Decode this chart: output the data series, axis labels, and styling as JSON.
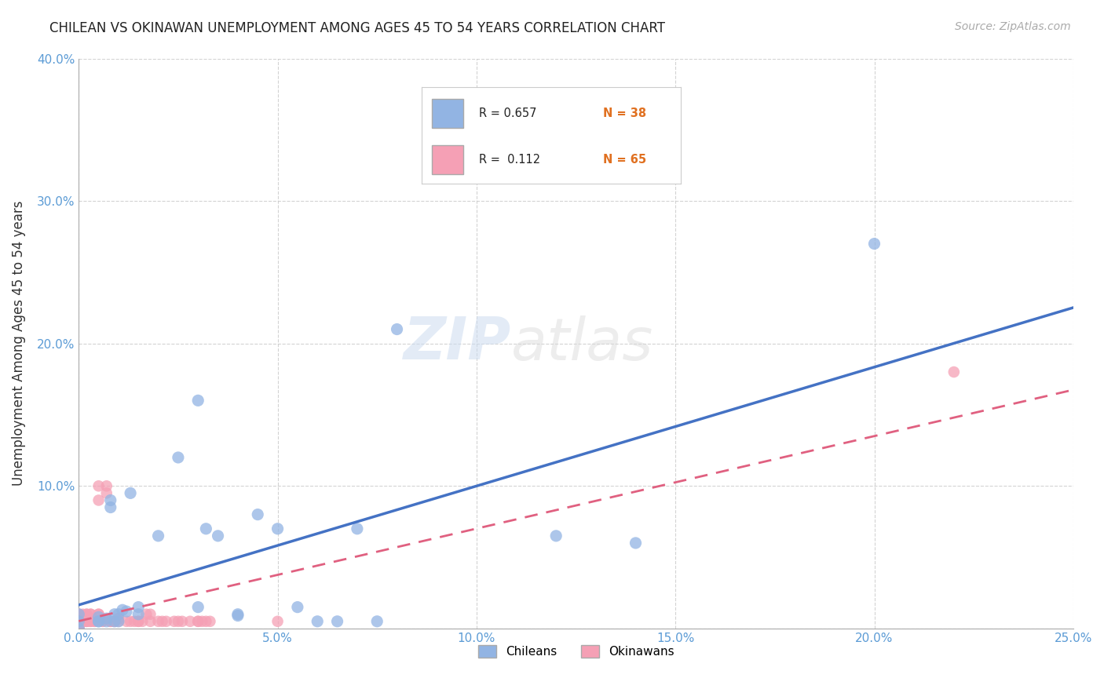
{
  "title": "CHILEAN VS OKINAWAN UNEMPLOYMENT AMONG AGES 45 TO 54 YEARS CORRELATION CHART",
  "source": "Source: ZipAtlas.com",
  "ylabel": "Unemployment Among Ages 45 to 54 years",
  "xlim": [
    0,
    0.25
  ],
  "ylim": [
    0,
    0.4
  ],
  "xticks": [
    0.0,
    0.05,
    0.1,
    0.15,
    0.2,
    0.25
  ],
  "yticks": [
    0.0,
    0.1,
    0.2,
    0.3,
    0.4
  ],
  "xtick_labels": [
    "0.0%",
    "5.0%",
    "10.0%",
    "15.0%",
    "20.0%",
    "25.0%"
  ],
  "ytick_labels": [
    "",
    "10.0%",
    "20.0%",
    "30.0%",
    "40.0%"
  ],
  "chilean_color": "#92b4e3",
  "okinawan_color": "#f5a0b5",
  "trendline_blue": "#4472c4",
  "trendline_pink": "#e06080",
  "chilean_R": 0.657,
  "chilean_N": 38,
  "okinawan_R": 0.112,
  "okinawan_N": 65,
  "watermark": "ZIPatlas",
  "background_color": "#ffffff",
  "chilean_x": [
    0.0,
    0.0,
    0.0,
    0.005,
    0.005,
    0.005,
    0.007,
    0.007,
    0.008,
    0.008,
    0.009,
    0.009,
    0.01,
    0.01,
    0.011,
    0.012,
    0.013,
    0.015,
    0.015,
    0.02,
    0.025,
    0.03,
    0.03,
    0.032,
    0.035,
    0.04,
    0.04,
    0.045,
    0.05,
    0.055,
    0.06,
    0.065,
    0.07,
    0.075,
    0.08,
    0.12,
    0.14,
    0.2
  ],
  "chilean_y": [
    0.0,
    0.01,
    0.005,
    0.005,
    0.005,
    0.008,
    0.005,
    0.007,
    0.085,
    0.09,
    0.005,
    0.01,
    0.005,
    0.01,
    0.013,
    0.012,
    0.095,
    0.01,
    0.015,
    0.065,
    0.12,
    0.015,
    0.16,
    0.07,
    0.065,
    0.009,
    0.01,
    0.08,
    0.07,
    0.015,
    0.005,
    0.005,
    0.07,
    0.005,
    0.21,
    0.065,
    0.06,
    0.27
  ],
  "okinawan_x": [
    0.0,
    0.0,
    0.0,
    0.0,
    0.0,
    0.0,
    0.0,
    0.0,
    0.0,
    0.0,
    0.0,
    0.0,
    0.001,
    0.001,
    0.001,
    0.002,
    0.002,
    0.002,
    0.002,
    0.002,
    0.003,
    0.003,
    0.003,
    0.003,
    0.004,
    0.004,
    0.005,
    0.005,
    0.005,
    0.005,
    0.006,
    0.006,
    0.007,
    0.007,
    0.008,
    0.008,
    0.008,
    0.009,
    0.009,
    0.01,
    0.01,
    0.01,
    0.012,
    0.013,
    0.014,
    0.015,
    0.015,
    0.016,
    0.017,
    0.018,
    0.018,
    0.02,
    0.021,
    0.022,
    0.024,
    0.025,
    0.026,
    0.028,
    0.03,
    0.03,
    0.031,
    0.032,
    0.033,
    0.05,
    0.22
  ],
  "okinawan_y": [
    0.0,
    0.0,
    0.0,
    0.0,
    0.005,
    0.005,
    0.005,
    0.005,
    0.005,
    0.01,
    0.01,
    0.01,
    0.005,
    0.005,
    0.01,
    0.005,
    0.005,
    0.005,
    0.01,
    0.01,
    0.005,
    0.005,
    0.01,
    0.01,
    0.005,
    0.005,
    0.01,
    0.01,
    0.09,
    0.1,
    0.005,
    0.005,
    0.095,
    0.1,
    0.005,
    0.005,
    0.005,
    0.005,
    0.005,
    0.005,
    0.007,
    0.007,
    0.005,
    0.005,
    0.005,
    0.005,
    0.005,
    0.005,
    0.01,
    0.01,
    0.005,
    0.005,
    0.005,
    0.005,
    0.005,
    0.005,
    0.005,
    0.005,
    0.005,
    0.005,
    0.005,
    0.005,
    0.005,
    0.005,
    0.18
  ]
}
